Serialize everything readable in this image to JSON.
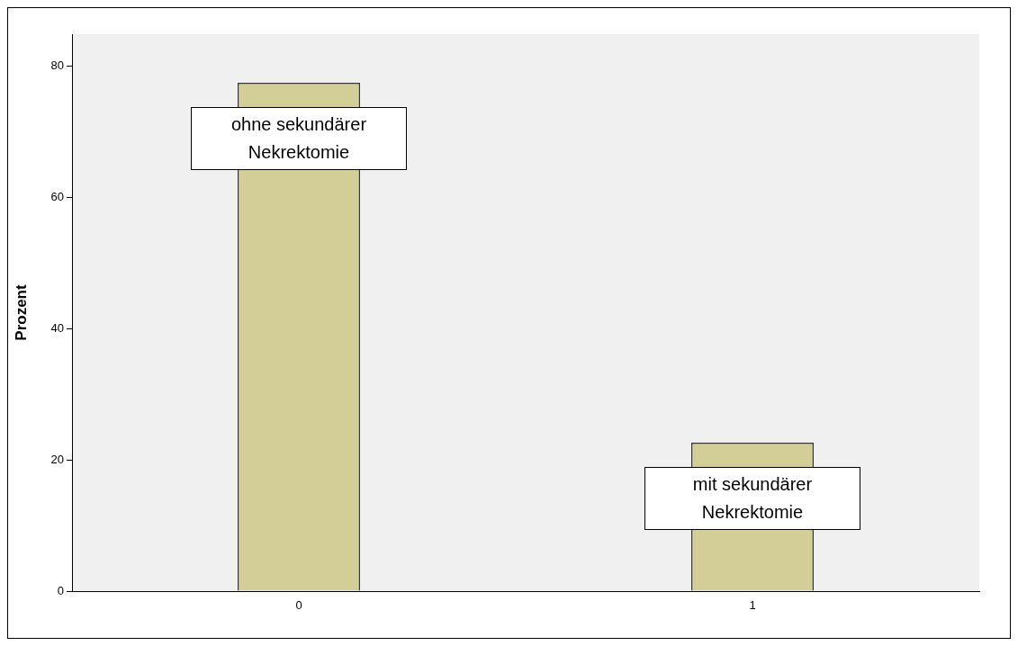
{
  "chart_data": {
    "type": "bar",
    "ylabel": "Prozent",
    "categories": [
      "0",
      "1"
    ],
    "values": [
      77.4,
      22.6
    ],
    "color": "#d3ce97",
    "ylim": [
      0,
      84.8
    ],
    "yticks": [
      0,
      20,
      40,
      60,
      80
    ],
    "grid": false,
    "legend": false,
    "annotations": [
      "ohne sekundärer Nekrektomie",
      "mit sekundärer Nekrektomie"
    ]
  }
}
